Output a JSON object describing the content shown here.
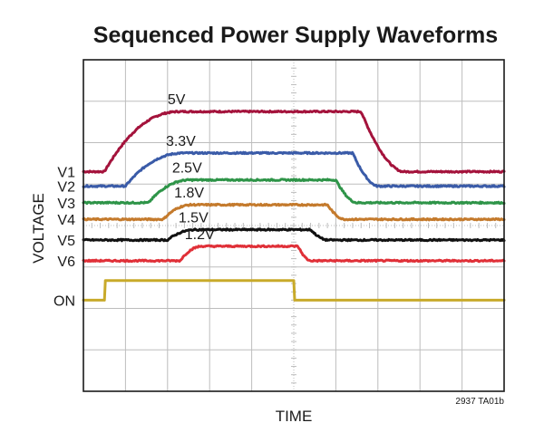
{
  "chart_data": {
    "type": "line",
    "title": "Sequenced Power Supply Waveforms",
    "xlabel": "TIME",
    "ylabel": "VOLTAGE",
    "grid": true,
    "code": "2937 TA01b",
    "xlim": [
      0,
      10
    ],
    "ylim": [
      0,
      8
    ],
    "series": [
      {
        "name": "V1",
        "label": "5V",
        "color": "#a4133c",
        "base": 5.3,
        "high": 6.75,
        "rise_start": 0.5,
        "rise_end": 2.3,
        "fall_start": 6.6,
        "fall_end": 7.6
      },
      {
        "name": "V2",
        "label": "3.3V",
        "color": "#3a5ba8",
        "base": 4.95,
        "high": 5.75,
        "rise_start": 1.0,
        "rise_end": 2.4,
        "fall_start": 6.4,
        "fall_end": 7.0
      },
      {
        "name": "V3",
        "label": "2.5V",
        "color": "#2e9448",
        "base": 4.55,
        "high": 5.1,
        "rise_start": 1.55,
        "rise_end": 2.55,
        "fall_start": 6.0,
        "fall_end": 6.5
      },
      {
        "name": "V4",
        "label": "1.8V",
        "color": "#c47a2c",
        "base": 4.15,
        "high": 4.5,
        "rise_start": 1.9,
        "rise_end": 2.6,
        "fall_start": 5.8,
        "fall_end": 6.2
      },
      {
        "name": "V5",
        "label": "1.5V",
        "color": "#111111",
        "base": 3.65,
        "high": 3.9,
        "rise_start": 2.0,
        "rise_end": 2.7,
        "fall_start": 5.4,
        "fall_end": 5.8
      },
      {
        "name": "V6",
        "label": "1.2V",
        "color": "#e03038",
        "base": 3.15,
        "high": 3.5,
        "rise_start": 2.3,
        "rise_end": 2.85,
        "fall_start": 5.1,
        "fall_end": 5.4
      },
      {
        "name": "ON",
        "label": "",
        "color": "#c8aa2a",
        "base": 2.2,
        "high": 2.67,
        "rise_start": 0.5,
        "rise_end": 0.52,
        "fall_start": 5.0,
        "fall_end": 5.02
      }
    ]
  }
}
